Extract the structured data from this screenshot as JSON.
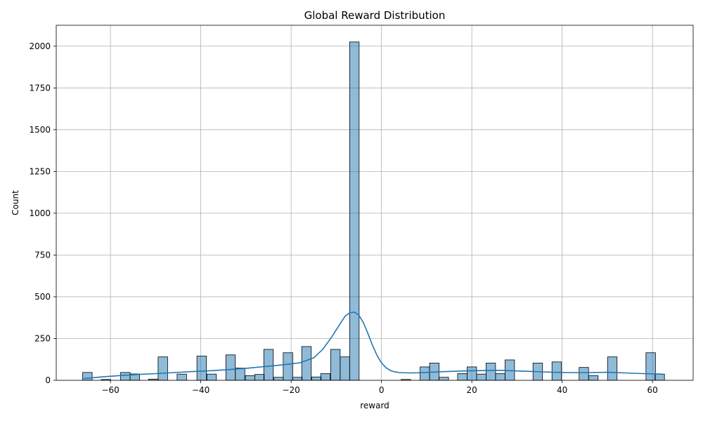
{
  "chart_data": {
    "type": "bar",
    "title": "Global Reward Distribution",
    "xlabel": "reward",
    "ylabel": "Count",
    "xlim": [
      -72,
      69
    ],
    "ylim": [
      0,
      2125
    ],
    "xticks": [
      -60,
      -40,
      -20,
      0,
      20,
      40,
      60
    ],
    "xtick_labels": [
      "−60",
      "−40",
      "−20",
      "0",
      "20",
      "40",
      "60"
    ],
    "yticks": [
      0,
      250,
      500,
      750,
      1000,
      1250,
      1500,
      1750,
      2000
    ],
    "ytick_labels": [
      "0",
      "250",
      "500",
      "750",
      "1000",
      "1250",
      "1500",
      "1750",
      "2000"
    ],
    "grid": true,
    "colors": {
      "bar": "#1f77b4",
      "line": "#1f77b4"
    },
    "histogram": {
      "bin_width": 2.1,
      "bin_centers": [
        -65.1,
        -61.0,
        -56.7,
        -54.6,
        -50.5,
        -48.4,
        -44.2,
        -39.8,
        -37.6,
        -33.4,
        -31.3,
        -29.1,
        -27.0,
        -25.0,
        -22.8,
        -20.7,
        -18.6,
        -16.6,
        -14.4,
        -12.4,
        -10.2,
        -8.1,
        -6.0,
        5.4,
        9.6,
        11.7,
        13.8,
        17.9,
        20.0,
        22.1,
        24.2,
        26.3,
        28.4,
        34.6,
        38.8,
        44.8,
        46.9,
        51.1,
        59.6,
        61.6
      ],
      "counts": [
        47,
        5,
        47,
        38,
        7,
        140,
        37,
        145,
        37,
        152,
        73,
        28,
        35,
        185,
        18,
        165,
        18,
        202,
        20,
        40,
        185,
        140,
        2025,
        5,
        80,
        103,
        18,
        40,
        80,
        37,
        103,
        40,
        122,
        103,
        110,
        77,
        28,
        140,
        165,
        37
      ]
    },
    "kde": {
      "x": [
        -66,
        -62,
        -58,
        -54,
        -50,
        -46,
        -42,
        -38,
        -34,
        -30,
        -26,
        -22,
        -18,
        -15,
        -13,
        -11,
        -9,
        -8,
        -7,
        -6,
        -5,
        -4,
        -3,
        -2,
        -1,
        0,
        1,
        2,
        3,
        4,
        6,
        8,
        10,
        14,
        18,
        22,
        26,
        30,
        34,
        38,
        42,
        46,
        50,
        54,
        58,
        62
      ],
      "y": [
        10,
        20,
        28,
        35,
        40,
        46,
        52,
        57,
        64,
        72,
        82,
        92,
        105,
        135,
        185,
        260,
        345,
        385,
        405,
        408,
        390,
        345,
        280,
        210,
        150,
        105,
        75,
        58,
        50,
        46,
        44,
        45,
        47,
        52,
        56,
        58,
        60,
        56,
        52,
        48,
        46,
        46,
        48,
        44,
        40,
        38
      ]
    }
  }
}
